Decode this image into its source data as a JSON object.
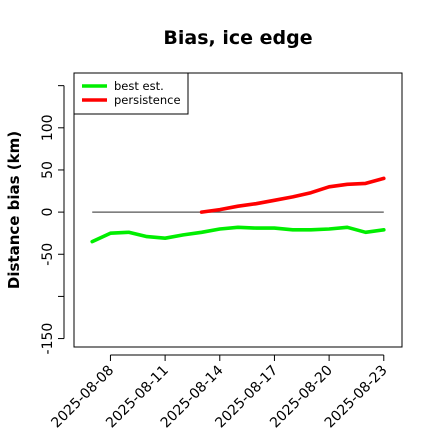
{
  "chart_data": {
    "type": "line",
    "title": "Bias, ice edge",
    "xlabel": "",
    "ylabel": "Distance bias (km)",
    "x_type": "date",
    "xlim": [
      "2025-08-06",
      "2025-08-24"
    ],
    "ylim": [
      -160,
      165
    ],
    "x_ticks": [
      "2025-08-08",
      "2025-08-11",
      "2025-08-14",
      "2025-08-17",
      "2025-08-20",
      "2025-08-23"
    ],
    "y_ticks": [
      -150,
      -50,
      0,
      50,
      100
    ],
    "y_tick_labels": [
      "-150",
      "-50",
      "0",
      "50",
      "100"
    ],
    "y_tick_marks_extra": [
      -100,
      150
    ],
    "reference_line": {
      "y": 0,
      "x_start": "2025-08-07",
      "x_end": "2025-08-23",
      "color": "#555555"
    },
    "legend": {
      "position": "top-left",
      "entries": [
        "best est.",
        "persistence"
      ]
    },
    "series": [
      {
        "name": "best est.",
        "color": "#00ee00",
        "x": [
          "2025-08-07",
          "2025-08-08",
          "2025-08-09",
          "2025-08-10",
          "2025-08-11",
          "2025-08-12",
          "2025-08-13",
          "2025-08-14",
          "2025-08-15",
          "2025-08-16",
          "2025-08-17",
          "2025-08-18",
          "2025-08-19",
          "2025-08-20",
          "2025-08-21",
          "2025-08-22",
          "2025-08-23"
        ],
        "values": [
          -35,
          -25,
          -24,
          -29,
          -31,
          -27,
          -24,
          -20,
          -18,
          -19,
          -19,
          -21,
          -21,
          -20,
          -18,
          -24,
          -21
        ]
      },
      {
        "name": "persistence",
        "color": "#ff0000",
        "x": [
          "2025-08-13",
          "2025-08-14",
          "2025-08-15",
          "2025-08-16",
          "2025-08-17",
          "2025-08-18",
          "2025-08-19",
          "2025-08-20",
          "2025-08-21",
          "2025-08-22",
          "2025-08-23"
        ],
        "values": [
          0,
          3,
          7,
          10,
          14,
          18,
          23,
          30,
          33,
          34,
          40
        ]
      }
    ]
  }
}
